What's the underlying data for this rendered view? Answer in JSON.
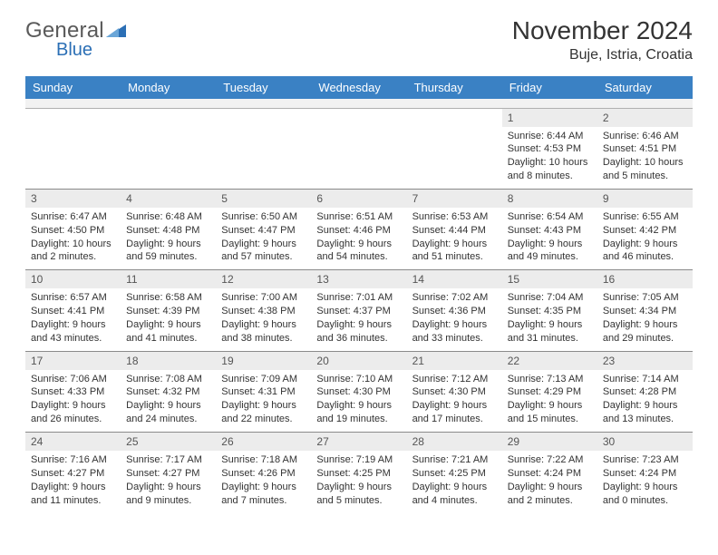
{
  "logo": {
    "word1": "General",
    "word2": "Blue"
  },
  "title": {
    "month": "November 2024",
    "location": "Buje, Istria, Croatia"
  },
  "days": [
    "Sunday",
    "Monday",
    "Tuesday",
    "Wednesday",
    "Thursday",
    "Friday",
    "Saturday"
  ],
  "style": {
    "header_bg": "#3a81c4",
    "header_fg": "#ffffff",
    "daynum_bg": "#ececec",
    "daynum_border": "#8a8a8a",
    "body_font_size": 11,
    "header_font_size": 13,
    "title_font_size": 28,
    "location_font_size": 16,
    "logo_accent": "#2b6fb5",
    "text_color": "#333333"
  },
  "weeks": [
    [
      null,
      null,
      null,
      null,
      null,
      {
        "n": "1",
        "sunrise": "6:44 AM",
        "sunset": "4:53 PM",
        "daylight": "10 hours and 8 minutes."
      },
      {
        "n": "2",
        "sunrise": "6:46 AM",
        "sunset": "4:51 PM",
        "daylight": "10 hours and 5 minutes."
      }
    ],
    [
      {
        "n": "3",
        "sunrise": "6:47 AM",
        "sunset": "4:50 PM",
        "daylight": "10 hours and 2 minutes."
      },
      {
        "n": "4",
        "sunrise": "6:48 AM",
        "sunset": "4:48 PM",
        "daylight": "9 hours and 59 minutes."
      },
      {
        "n": "5",
        "sunrise": "6:50 AM",
        "sunset": "4:47 PM",
        "daylight": "9 hours and 57 minutes."
      },
      {
        "n": "6",
        "sunrise": "6:51 AM",
        "sunset": "4:46 PM",
        "daylight": "9 hours and 54 minutes."
      },
      {
        "n": "7",
        "sunrise": "6:53 AM",
        "sunset": "4:44 PM",
        "daylight": "9 hours and 51 minutes."
      },
      {
        "n": "8",
        "sunrise": "6:54 AM",
        "sunset": "4:43 PM",
        "daylight": "9 hours and 49 minutes."
      },
      {
        "n": "9",
        "sunrise": "6:55 AM",
        "sunset": "4:42 PM",
        "daylight": "9 hours and 46 minutes."
      }
    ],
    [
      {
        "n": "10",
        "sunrise": "6:57 AM",
        "sunset": "4:41 PM",
        "daylight": "9 hours and 43 minutes."
      },
      {
        "n": "11",
        "sunrise": "6:58 AM",
        "sunset": "4:39 PM",
        "daylight": "9 hours and 41 minutes."
      },
      {
        "n": "12",
        "sunrise": "7:00 AM",
        "sunset": "4:38 PM",
        "daylight": "9 hours and 38 minutes."
      },
      {
        "n": "13",
        "sunrise": "7:01 AM",
        "sunset": "4:37 PM",
        "daylight": "9 hours and 36 minutes."
      },
      {
        "n": "14",
        "sunrise": "7:02 AM",
        "sunset": "4:36 PM",
        "daylight": "9 hours and 33 minutes."
      },
      {
        "n": "15",
        "sunrise": "7:04 AM",
        "sunset": "4:35 PM",
        "daylight": "9 hours and 31 minutes."
      },
      {
        "n": "16",
        "sunrise": "7:05 AM",
        "sunset": "4:34 PM",
        "daylight": "9 hours and 29 minutes."
      }
    ],
    [
      {
        "n": "17",
        "sunrise": "7:06 AM",
        "sunset": "4:33 PM",
        "daylight": "9 hours and 26 minutes."
      },
      {
        "n": "18",
        "sunrise": "7:08 AM",
        "sunset": "4:32 PM",
        "daylight": "9 hours and 24 minutes."
      },
      {
        "n": "19",
        "sunrise": "7:09 AM",
        "sunset": "4:31 PM",
        "daylight": "9 hours and 22 minutes."
      },
      {
        "n": "20",
        "sunrise": "7:10 AM",
        "sunset": "4:30 PM",
        "daylight": "9 hours and 19 minutes."
      },
      {
        "n": "21",
        "sunrise": "7:12 AM",
        "sunset": "4:30 PM",
        "daylight": "9 hours and 17 minutes."
      },
      {
        "n": "22",
        "sunrise": "7:13 AM",
        "sunset": "4:29 PM",
        "daylight": "9 hours and 15 minutes."
      },
      {
        "n": "23",
        "sunrise": "7:14 AM",
        "sunset": "4:28 PM",
        "daylight": "9 hours and 13 minutes."
      }
    ],
    [
      {
        "n": "24",
        "sunrise": "7:16 AM",
        "sunset": "4:27 PM",
        "daylight": "9 hours and 11 minutes."
      },
      {
        "n": "25",
        "sunrise": "7:17 AM",
        "sunset": "4:27 PM",
        "daylight": "9 hours and 9 minutes."
      },
      {
        "n": "26",
        "sunrise": "7:18 AM",
        "sunset": "4:26 PM",
        "daylight": "9 hours and 7 minutes."
      },
      {
        "n": "27",
        "sunrise": "7:19 AM",
        "sunset": "4:25 PM",
        "daylight": "9 hours and 5 minutes."
      },
      {
        "n": "28",
        "sunrise": "7:21 AM",
        "sunset": "4:25 PM",
        "daylight": "9 hours and 4 minutes."
      },
      {
        "n": "29",
        "sunrise": "7:22 AM",
        "sunset": "4:24 PM",
        "daylight": "9 hours and 2 minutes."
      },
      {
        "n": "30",
        "sunrise": "7:23 AM",
        "sunset": "4:24 PM",
        "daylight": "9 hours and 0 minutes."
      }
    ]
  ],
  "labels": {
    "sunrise": "Sunrise:",
    "sunset": "Sunset:",
    "daylight": "Daylight:"
  }
}
